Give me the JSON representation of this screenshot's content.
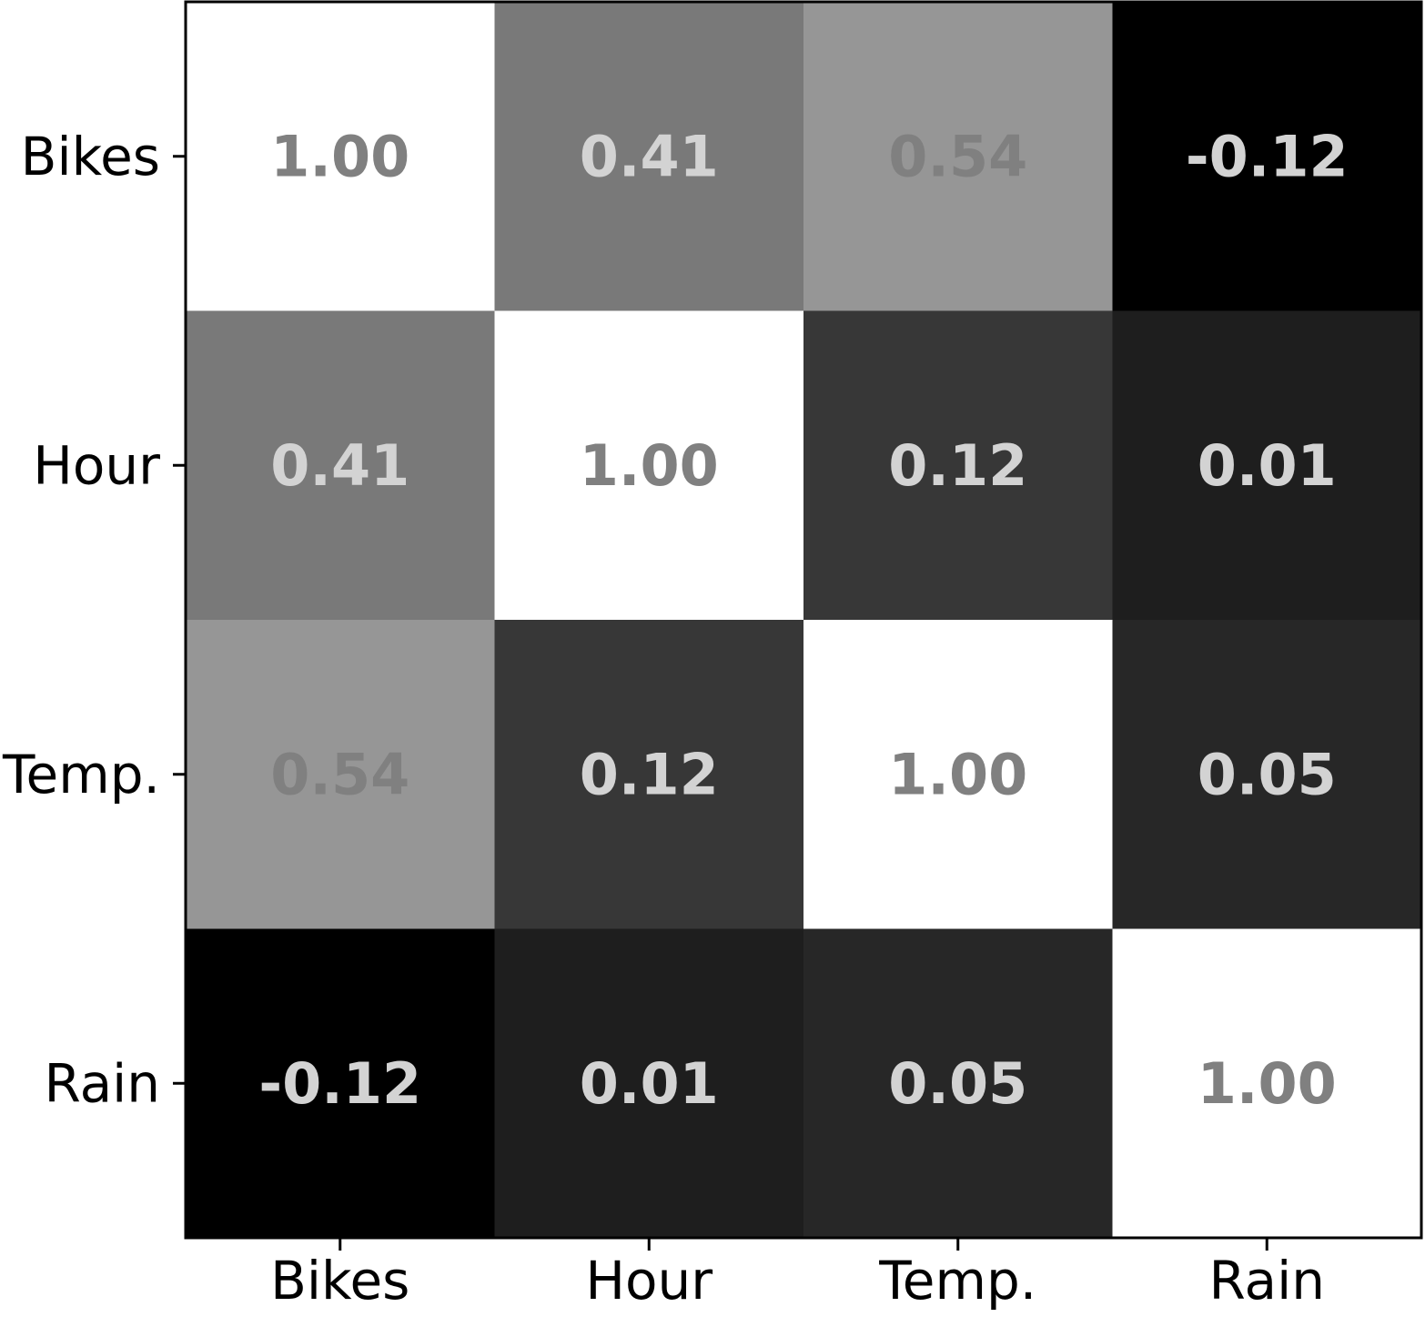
{
  "chart_data": {
    "type": "heatmap",
    "title": "",
    "xlabel": "",
    "ylabel": "",
    "x_categories": [
      "Bikes",
      "Hour",
      "Temp.",
      "Rain"
    ],
    "y_categories": [
      "Bikes",
      "Hour",
      "Temp.",
      "Rain"
    ],
    "values": [
      [
        1.0,
        0.41,
        0.54,
        -0.12
      ],
      [
        0.41,
        1.0,
        0.12,
        0.01
      ],
      [
        0.54,
        0.12,
        1.0,
        0.05
      ],
      [
        -0.12,
        0.01,
        0.05,
        1.0
      ]
    ],
    "value_range": [
      -0.12,
      1.0
    ],
    "colormap": "gray",
    "color_low": "#000000",
    "color_high": "#ffffff",
    "label_color_on_light": "#808080",
    "label_color_on_dark": "#d3d3d3",
    "grid": false,
    "legend": "none"
  }
}
